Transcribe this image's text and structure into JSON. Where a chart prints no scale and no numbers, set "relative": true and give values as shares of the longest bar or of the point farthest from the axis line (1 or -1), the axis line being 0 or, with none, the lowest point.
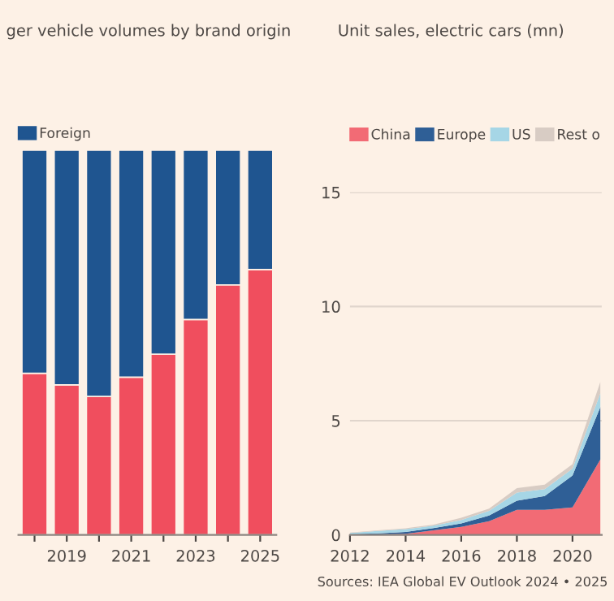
{
  "chart_data": [
    {
      "type": "bar",
      "title": "ger vehicle volumes by brand origin",
      "stacked": true,
      "relative": true,
      "legend": "top left",
      "categories": [
        null,
        "2019",
        null,
        "2021",
        null,
        "2023",
        null,
        "2025"
      ],
      "series": [
        {
          "color": "#f04e5e",
          "values": [
            0.42,
            0.39,
            0.36,
            0.41,
            0.47,
            0.56,
            0.65,
            0.69
          ]
        },
        {
          "name": "Foreign",
          "color": "#1f5590",
          "values": [
            0.58,
            0.61,
            0.64,
            0.59,
            0.53,
            0.44,
            0.35,
            0.31
          ]
        }
      ]
    },
    {
      "type": "area",
      "title": "Unit sales, electric cars (mn)",
      "stacked": true,
      "legend": "top left",
      "grid": "y",
      "x": [
        2012,
        2013,
        2014,
        2015,
        2016,
        2017,
        2018,
        2019,
        2020,
        2021
      ],
      "xlim": [
        2012,
        2021.05
      ],
      "xticks": [
        2012,
        2014,
        2016,
        2018,
        2020
      ],
      "ylim": [
        0,
        15
      ],
      "yticks": [
        0,
        5,
        10,
        15
      ],
      "series": [
        {
          "name": "China",
          "color": "#f26b75",
          "values": [
            0.01,
            0.02,
            0.05,
            0.2,
            0.35,
            0.6,
            1.1,
            1.1,
            1.2,
            3.3
          ]
        },
        {
          "name": "Europe",
          "color": "#2f5f96",
          "values": [
            0.02,
            0.05,
            0.08,
            0.1,
            0.15,
            0.25,
            0.4,
            0.6,
            1.4,
            2.3
          ]
        },
        {
          "name": "US",
          "color": "#a6d6e6",
          "values": [
            0.05,
            0.1,
            0.12,
            0.1,
            0.15,
            0.2,
            0.35,
            0.3,
            0.3,
            0.6
          ]
        },
        {
          "name": "Rest o",
          "color": "#d8ccc4",
          "values": [
            0.02,
            0.03,
            0.04,
            0.05,
            0.1,
            0.1,
            0.2,
            0.2,
            0.2,
            0.5
          ]
        }
      ],
      "annotations": [
        "Sources: IEA Global EV Outlook 2024 • 2025"
      ]
    }
  ]
}
